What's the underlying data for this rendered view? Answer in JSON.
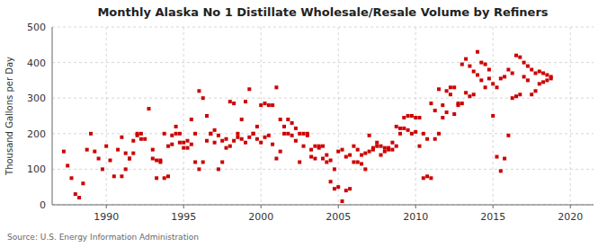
{
  "chart_data": {
    "type": "scatter",
    "title": "Monthly Alaska No 1 Distillate Wholesale/Resale Volume by Refiners",
    "y_label": "Thousand Gallons per Day",
    "annotations": [
      "Source: U.S. Energy Information Administration"
    ],
    "color": "#cc0000",
    "marker": "square",
    "grid": true,
    "xlim": [
      1986.5,
      2021.5
    ],
    "ylim": [
      0,
      500
    ],
    "xticks": [
      1990,
      1995,
      2000,
      2005,
      2010,
      2015,
      2020
    ],
    "yticks": [
      0,
      100,
      200,
      300,
      400,
      500
    ],
    "x": [
      1987.25,
      1987.5,
      1987.75,
      1988.0,
      1988.25,
      1988.5,
      1988.75,
      1989.0,
      1989.25,
      1989.5,
      1989.75,
      1990.0,
      1990.25,
      1990.5,
      1990.75,
      1991.0,
      1991.25,
      1991.5,
      1991.75,
      1991.0,
      1991.25,
      1991.5,
      1991.75,
      1992.0,
      1992.25,
      1992.0,
      1992.25,
      1992.5,
      1992.75,
      1993.0,
      1993.25,
      1993.5,
      1993.75,
      1993.0,
      1993.25,
      1993.5,
      1993.75,
      1994.0,
      1994.25,
      1994.5,
      1994.75,
      1994.0,
      1994.25,
      1994.5,
      1994.75,
      1995.0,
      1995.25,
      1995.5,
      1995.75,
      1995.0,
      1995.25,
      1995.5,
      1995.75,
      1996.0,
      1996.25,
      1996.5,
      1996.75,
      1996.0,
      1996.25,
      1996.5,
      1996.75,
      1997.0,
      1997.25,
      1997.5,
      1997.75,
      1997.0,
      1997.25,
      1997.5,
      1997.75,
      1998.0,
      1998.25,
      1998.5,
      1998.75,
      1998.0,
      1998.25,
      1998.5,
      1998.75,
      1999.0,
      1999.25,
      1999.5,
      1999.75,
      1999.0,
      1999.25,
      1999.5,
      1999.75,
      2000.0,
      2000.25,
      2000.5,
      2000.75,
      2000.0,
      2000.25,
      2000.5,
      2000.75,
      2001.0,
      2001.25,
      2001.5,
      2001.75,
      2001.0,
      2001.25,
      2001.5,
      2001.75,
      2002.0,
      2002.25,
      2002.5,
      2002.75,
      2002.0,
      2002.25,
      2002.5,
      2002.75,
      2003.0,
      2003.25,
      2003.5,
      2003.75,
      2003.0,
      2003.25,
      2003.5,
      2003.75,
      2004.0,
      2004.25,
      2004.5,
      2004.75,
      2004.0,
      2004.25,
      2004.5,
      2004.75,
      2005.0,
      2005.25,
      2005.5,
      2005.75,
      2005.0,
      2005.25,
      2005.5,
      2005.75,
      2006.0,
      2006.25,
      2006.5,
      2006.75,
      2006.0,
      2006.25,
      2006.5,
      2006.75,
      2007.0,
      2007.25,
      2007.5,
      2007.75,
      2007.0,
      2007.25,
      2007.5,
      2007.75,
      2008.0,
      2008.25,
      2008.5,
      2008.75,
      2008.0,
      2008.25,
      2008.5,
      2008.75,
      2009.0,
      2009.25,
      2009.5,
      2009.75,
      2009.0,
      2009.25,
      2009.5,
      2009.75,
      2010.0,
      2010.25,
      2010.5,
      2010.75,
      2010.0,
      2010.25,
      2010.5,
      2010.75,
      2011.0,
      2011.25,
      2011.5,
      2011.75,
      2011.0,
      2011.25,
      2011.5,
      2011.75,
      2012.0,
      2012.25,
      2012.5,
      2012.75,
      2012.0,
      2012.25,
      2012.5,
      2012.75,
      2013.0,
      2013.25,
      2013.5,
      2013.75,
      2013.0,
      2013.25,
      2013.5,
      2013.75,
      2014.0,
      2014.25,
      2014.5,
      2014.75,
      2014.0,
      2014.25,
      2014.5,
      2014.75,
      2015.0,
      2015.25,
      2015.5,
      2015.75,
      2015.0,
      2015.25,
      2015.5,
      2015.75,
      2016.0,
      2016.25,
      2016.5,
      2016.75,
      2016.0,
      2016.25,
      2016.5,
      2016.75,
      2017.0,
      2017.25,
      2017.5,
      2017.75,
      2017.0,
      2017.25,
      2017.5,
      2017.75,
      2018.0,
      2018.25,
      2018.5,
      2018.75,
      2018.0,
      2018.25,
      2018.5,
      2018.75
    ],
    "values": [
      150,
      110,
      75,
      30,
      20,
      60,
      155,
      200,
      150,
      130,
      100,
      165,
      125,
      80,
      155,
      190,
      145,
      130,
      145,
      80,
      100,
      130,
      180,
      200,
      200,
      195,
      185,
      185,
      270,
      130,
      75,
      125,
      200,
      155,
      125,
      120,
      75,
      80,
      195,
      220,
      200,
      165,
      170,
      200,
      175,
      160,
      180,
      240,
      200,
      175,
      160,
      170,
      120,
      100,
      120,
      180,
      200,
      320,
      300,
      250,
      200,
      175,
      100,
      120,
      160,
      210,
      195,
      180,
      185,
      165,
      180,
      190,
      240,
      290,
      285,
      200,
      185,
      175,
      190,
      200,
      220,
      290,
      325,
      200,
      185,
      175,
      190,
      195,
      280,
      280,
      285,
      280,
      170,
      130,
      150,
      200,
      240,
      330,
      240,
      220,
      200,
      195,
      180,
      120,
      165,
      230,
      215,
      200,
      200,
      195,
      135,
      130,
      165,
      200,
      155,
      165,
      160,
      130,
      120,
      125,
      100,
      165,
      140,
      65,
      45,
      50,
      10,
      40,
      45,
      150,
      155,
      135,
      140,
      120,
      120,
      115,
      100,
      165,
      155,
      140,
      145,
      150,
      160,
      175,
      140,
      195,
      155,
      165,
      165,
      160,
      160,
      155,
      165,
      150,
      155,
      175,
      220,
      200,
      245,
      250,
      250,
      215,
      215,
      210,
      200,
      245,
      245,
      200,
      185,
      205,
      165,
      75,
      80,
      75,
      185,
      200,
      245,
      285,
      265,
      325,
      280,
      260,
      330,
      330,
      285,
      320,
      310,
      255,
      280,
      285,
      315,
      305,
      310,
      395,
      410,
      390,
      375,
      365,
      350,
      330,
      355,
      430,
      400,
      395,
      380,
      340,
      330,
      355,
      360,
      250,
      135,
      95,
      130,
      195,
      300,
      305,
      310,
      380,
      370,
      420,
      415,
      400,
      390,
      380,
      370,
      360,
      350,
      310,
      320,
      340,
      345,
      350,
      360,
      375,
      370,
      365,
      355
    ]
  }
}
